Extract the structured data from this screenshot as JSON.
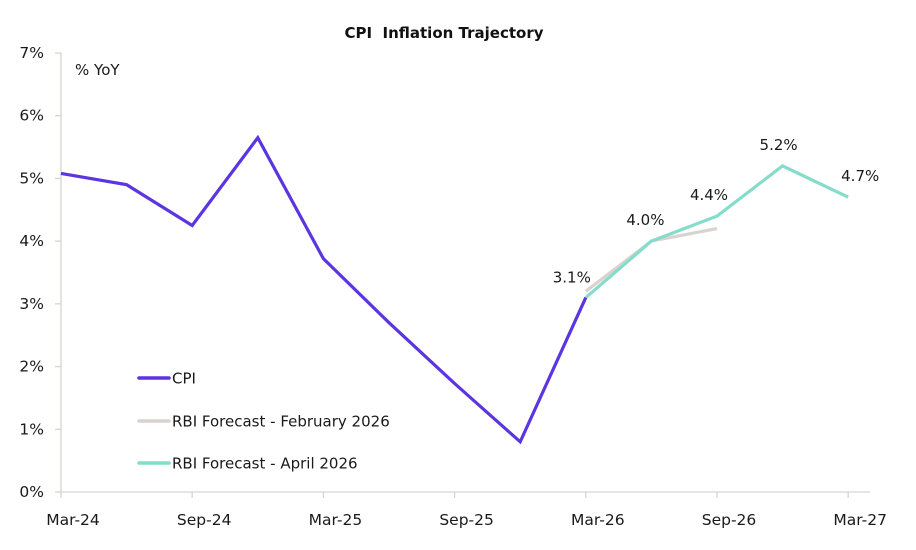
{
  "chart_data": {
    "type": "line",
    "title": "CPI  Inflation Trajectory",
    "ylabel": "% YoY",
    "xlabel": "",
    "ylim": [
      0,
      7
    ],
    "yticks": [
      0,
      1,
      2,
      3,
      4,
      5,
      6,
      7
    ],
    "ytick_labels": [
      "0%",
      "1%",
      "2%",
      "3%",
      "4%",
      "5%",
      "6%",
      "7%"
    ],
    "xlim_months": [
      0,
      37
    ],
    "xticks_months": [
      0,
      6,
      12,
      18,
      24,
      30,
      36
    ],
    "xtick_labels": [
      "Mar-24",
      "Sep-24",
      "Mar-25",
      "Sep-25",
      "Mar-26",
      "Sep-26",
      "Mar-27"
    ],
    "grid": false,
    "legend_position": "bottom-left",
    "series": [
      {
        "name": "CPI",
        "color": "#5b35e0",
        "months": [
          0,
          1,
          3,
          6,
          9,
          12,
          15,
          18,
          21,
          24
        ],
        "values": [
          5.08,
          5.02,
          4.9,
          4.25,
          5.65,
          3.72,
          2.7,
          1.73,
          0.8,
          3.1
        ]
      },
      {
        "name": "RBI Forecast - February 2026",
        "color": "#d9d3d0",
        "months": [
          24,
          27,
          30
        ],
        "values": [
          3.2,
          4.0,
          4.2
        ]
      },
      {
        "name": "RBI Forecast - April 2026",
        "color": "#86dccb",
        "months": [
          24,
          27,
          30,
          33,
          36
        ],
        "values": [
          3.1,
          4.0,
          4.4,
          5.2,
          4.7
        ]
      }
    ],
    "annotations": [
      {
        "series": 2,
        "point": 0,
        "text": "3.1%"
      },
      {
        "series": 2,
        "point": 1,
        "text": "4.0%"
      },
      {
        "series": 2,
        "point": 2,
        "text": "4.4%"
      },
      {
        "series": 2,
        "point": 3,
        "text": "5.2%"
      },
      {
        "series": 2,
        "point": 4,
        "text": "4.7%"
      }
    ]
  },
  "axis_color": "#d9d3d0"
}
